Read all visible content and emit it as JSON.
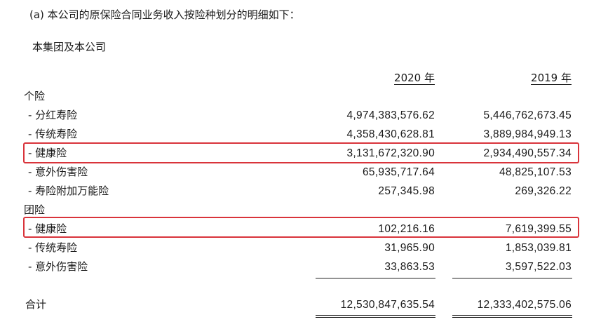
{
  "heading": "(a)  本公司的原保险合同业务收入按险种划分的明细如下：",
  "subheading": "本集团及本公司",
  "columns": [
    "2020 年",
    "2019 年"
  ],
  "sections": [
    {
      "label": "个险",
      "rows": [
        {
          "label": "-  分红寿险",
          "y2020": "4,974,383,576.62",
          "y2019": "5,446,762,673.45"
        },
        {
          "label": "-  传统寿险",
          "y2020": "4,358,430,628.81",
          "y2019": "3,889,984,949.13"
        },
        {
          "label": "-  健康险",
          "y2020": "3,131,672,320.90",
          "y2019": "2,934,490,557.34"
        },
        {
          "label": "-  意外伤害险",
          "y2020": "65,935,717.64",
          "y2019": "48,825,107.53"
        },
        {
          "label": "-  寿险附加万能险",
          "y2020": "257,345.98",
          "y2019": "269,326.22"
        }
      ]
    },
    {
      "label": "团险",
      "rows": [
        {
          "label": "-  健康险",
          "y2020": "102,216.16",
          "y2019": "7,619,399.55"
        },
        {
          "label": "-  传统寿险",
          "y2020": "31,965.90",
          "y2019": "1,853,039.81"
        },
        {
          "label": "-  意外伤害险",
          "y2020": "33,863.53",
          "y2019": "3,597,522.03"
        }
      ]
    }
  ],
  "total": {
    "label": "合计",
    "y2020": "12,530,847,635.54",
    "y2019": "12,333,402,575.06"
  },
  "highlight_color": "#d9343b"
}
